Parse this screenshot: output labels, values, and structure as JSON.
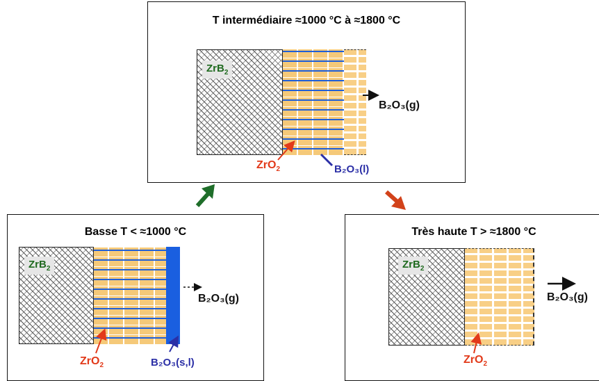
{
  "panels": {
    "middle": {
      "title": "T intermédiaire ≈1000 °C à ≈1800 °C",
      "zrb2_label": "ZrB",
      "zrb2_sub": "2",
      "zro2_label": "ZrO",
      "zro2_sub": "2",
      "b2o3_liquid": "B₂O₃(l)",
      "b2o3_gas": "B₂O₃(g)"
    },
    "left": {
      "title": "Basse T < ≈1000 °C",
      "zrb2_label": "ZrB",
      "zrb2_sub": "2",
      "zro2_label": "ZrO",
      "zro2_sub": "2",
      "b2o3_solid_liquid": "B₂O₃(s,l)",
      "b2o3_gas": "B₂O₃(g)"
    },
    "right": {
      "title": "Très haute T > ≈1800 °C",
      "zrb2_label": "ZrB",
      "zrb2_sub": "2",
      "zro2_label": "ZrO",
      "zro2_sub": "2",
      "b2o3_gas": "B₂O₃(g)"
    }
  },
  "colors": {
    "zrb2_label": "#1f6a1f",
    "zro2_label": "#e23a1a",
    "b2o3_condensed": "#2b2fa6",
    "oxide": "#f5c979",
    "glass": "#1a5fe0",
    "arrow_up": "#1f6e2a",
    "arrow_down": "#d2421a"
  }
}
